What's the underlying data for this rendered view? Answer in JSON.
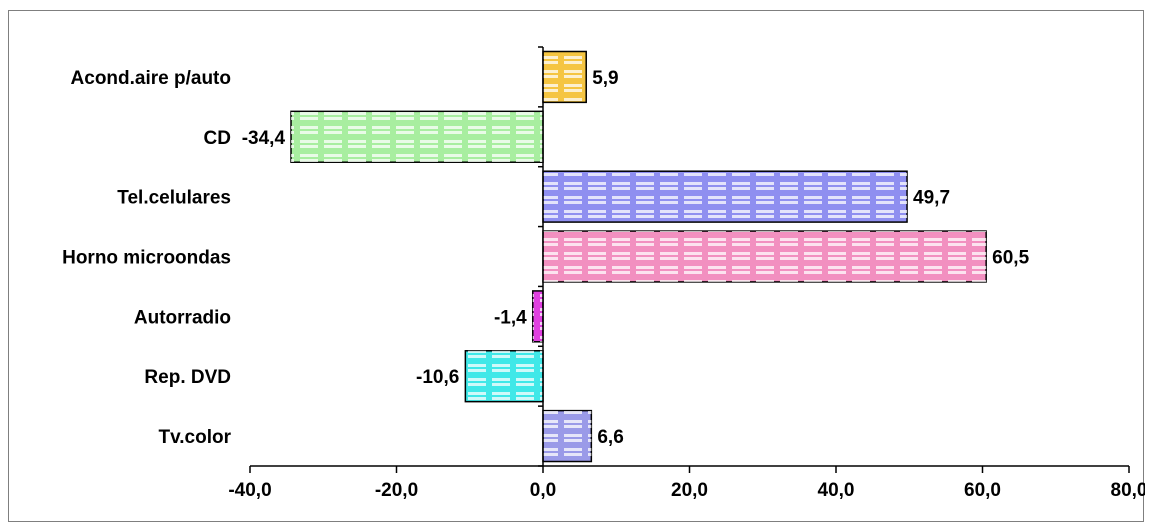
{
  "chart_data": {
    "type": "bar",
    "orientation": "horizontal",
    "categories": [
      "Acond.aire p/auto",
      "CD",
      "Tel.celulares",
      "Horno microondas",
      "Autorradio",
      "Rep. DVD",
      "Tv.color"
    ],
    "values": [
      5.9,
      -34.4,
      49.7,
      60.5,
      -1.4,
      -10.6,
      6.6
    ],
    "data_labels": [
      "5,9",
      "-34,4",
      "49,7",
      "60,5",
      "-1,4",
      "-10,6",
      "6,6"
    ],
    "colors": [
      "#f5c542",
      "#a8eea0",
      "#8f8ff0",
      "#f290c0",
      "#e040e0",
      "#40e8e8",
      "#9a9ae8"
    ],
    "xlim": [
      -40,
      80
    ],
    "xticks": [
      "-40,0",
      "-20,0",
      "0,0",
      "20,0",
      "40,0",
      "60,0",
      "80,0"
    ],
    "xtick_values": [
      -40,
      -20,
      0,
      20,
      40,
      60,
      80
    ],
    "title": "",
    "xlabel": "",
    "ylabel": "",
    "grid": false,
    "legend": "none"
  }
}
